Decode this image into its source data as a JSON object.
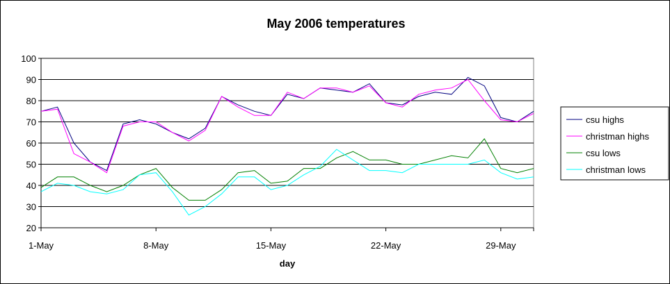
{
  "chart_data": {
    "type": "line",
    "title": "May 2006 temperatures",
    "xlabel": "day",
    "ylabel": "",
    "x": [
      1,
      2,
      3,
      4,
      5,
      6,
      7,
      8,
      9,
      10,
      11,
      12,
      13,
      14,
      15,
      16,
      17,
      18,
      19,
      20,
      21,
      22,
      23,
      24,
      25,
      26,
      27,
      28,
      29,
      30,
      31
    ],
    "x_tick_labels": [
      "1-May",
      "8-May",
      "15-May",
      "22-May",
      "29-May"
    ],
    "x_tick_positions": [
      1,
      8,
      15,
      22,
      29
    ],
    "ylim": [
      20,
      100
    ],
    "y_ticks": [
      20,
      30,
      40,
      50,
      60,
      70,
      80,
      90,
      100
    ],
    "grid": "horizontal",
    "legend_position": "right",
    "series": [
      {
        "name": "csu highs",
        "color": "#000080",
        "values": [
          75,
          77,
          60,
          51,
          47,
          69,
          71,
          69,
          65,
          62,
          67,
          82,
          78,
          75,
          73,
          83,
          81,
          86,
          85,
          84,
          88,
          79,
          78,
          82,
          84,
          83,
          91,
          87,
          72,
          70,
          75
        ]
      },
      {
        "name": "christman highs",
        "color": "#ff00ff",
        "values": [
          75,
          76,
          55,
          51,
          46,
          68,
          70,
          70,
          65,
          61,
          66,
          82,
          77,
          73,
          73,
          84,
          81,
          86,
          86,
          84,
          87,
          79,
          77,
          83,
          85,
          86,
          90,
          80,
          71,
          70,
          74
        ]
      },
      {
        "name": "csu lows",
        "color": "#008000",
        "values": [
          39,
          44,
          44,
          40,
          37,
          40,
          45,
          48,
          39,
          33,
          33,
          38,
          46,
          47,
          41,
          42,
          48,
          48,
          53,
          56,
          52,
          52,
          50,
          50,
          52,
          54,
          53,
          62,
          48,
          46,
          48
        ]
      },
      {
        "name": "christman lows",
        "color": "#00ffff",
        "values": [
          37,
          41,
          40,
          37,
          36,
          38,
          45,
          46,
          37,
          26,
          30,
          36,
          44,
          44,
          38,
          40,
          45,
          49,
          57,
          52,
          47,
          47,
          46,
          50,
          50,
          50,
          50,
          52,
          46,
          43,
          44
        ]
      }
    ]
  }
}
